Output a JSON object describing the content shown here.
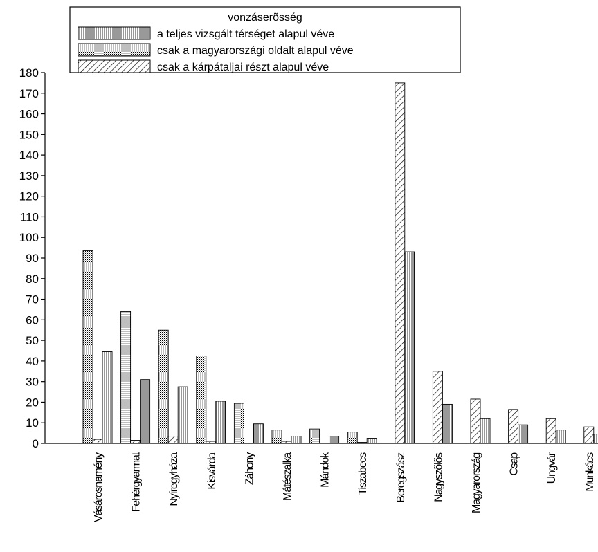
{
  "chart_data": {
    "type": "bar",
    "legend_title": "vonzáserõsség",
    "legend_position": "top",
    "ylim": [
      0,
      180
    ],
    "yticks": [
      "0",
      "10",
      "20",
      "30",
      "40",
      "50",
      "60",
      "70",
      "80",
      "90",
      "100",
      "110",
      "120",
      "130",
      "140",
      "150",
      "160",
      "170",
      "180"
    ],
    "categories": [
      "Vásárosnamény",
      "Fehérgyarmat",
      "Nyíregyháza",
      "Kisvárda",
      "Záhony",
      "Mátészalka",
      "Mándok",
      "Tiszabecs",
      "Beregszász",
      "Nagyszõlõs",
      "Magyarország",
      "Csap",
      "Ungvár",
      "Munkács"
    ],
    "series": [
      {
        "name": "csak a magyarországi oldalt alapul véve",
        "pattern": "dots",
        "values": [
          93.5,
          64,
          55,
          42.5,
          19.5,
          6.5,
          7,
          5.5,
          0,
          0,
          0,
          0,
          0,
          0
        ]
      },
      {
        "name": "csak a kárpátaljai részt alapul véve",
        "pattern": "hatch",
        "values": [
          2,
          1.5,
          3.5,
          1,
          0,
          1,
          0,
          0.5,
          175,
          35,
          21.5,
          16.5,
          12,
          8
        ]
      },
      {
        "name": "a teljes vizsgált térséget alapul véve",
        "pattern": "vlines",
        "values": [
          44.5,
          31,
          27.5,
          20.5,
          9.5,
          3.5,
          3.5,
          2.5,
          93,
          19,
          12,
          9,
          6.5,
          4.5
        ]
      }
    ],
    "legend_order": [
      "a teljes vizsgált térséget alapul véve",
      "csak a magyarországi oldalt alapul véve",
      "csak a kárpátaljai részt alapul véve"
    ]
  }
}
